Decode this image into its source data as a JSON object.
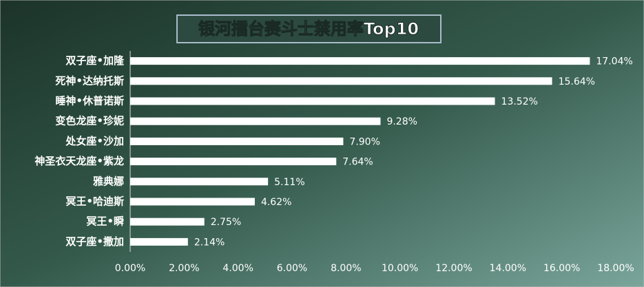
{
  "chart_data": {
    "type": "bar",
    "orientation": "horizontal",
    "title": "银河擂台赛斗士禁用率Top10",
    "categories": [
      "双子座•加隆",
      "死神•达纳托斯",
      "睡神•休普诺斯",
      "变色龙座•珍妮",
      "处女座•沙加",
      "神圣衣天龙座•紫龙",
      "雅典娜",
      "冥王•哈迪斯",
      "冥王•瞬",
      "双子座•撒加"
    ],
    "values": [
      17.04,
      15.64,
      13.52,
      9.28,
      7.9,
      7.64,
      5.11,
      4.62,
      2.75,
      2.14
    ],
    "value_labels": [
      "17.04%",
      "15.64%",
      "13.52%",
      "9.28%",
      "7.90%",
      "7.64%",
      "5.11%",
      "4.62%",
      "2.75%",
      "2.14%"
    ],
    "color": "#ffffff",
    "xlim": [
      0,
      18
    ],
    "xticks": [
      {
        "value": 0,
        "label": "0.00%"
      },
      {
        "value": 2,
        "label": "2.00%"
      },
      {
        "value": 4,
        "label": "4.00%"
      },
      {
        "value": 6,
        "label": "6.00%"
      },
      {
        "value": 8,
        "label": "8.00%"
      },
      {
        "value": 10,
        "label": "10.00%"
      },
      {
        "value": 12,
        "label": "12.00%"
      },
      {
        "value": 14,
        "label": "14.00%"
      },
      {
        "value": 16,
        "label": "16.00%"
      },
      {
        "value": 18,
        "label": "18.00%"
      }
    ],
    "grid": false
  }
}
